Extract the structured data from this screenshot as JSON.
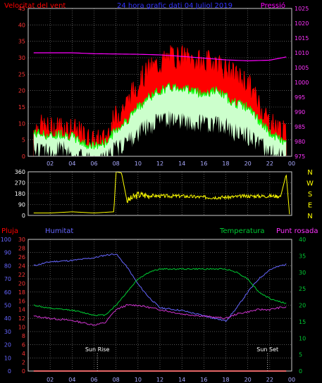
{
  "header": {
    "wind_speed_label": "Velocitat del vent",
    "title": "24 hora grafic dati  04 Juliol 2019",
    "pressure_label": "Pressió"
  },
  "legend_bottom": {
    "rain": "Pluja",
    "humidity": "Humitat",
    "temperature": "Temperatura",
    "dew_point": "Punt rosada"
  },
  "direction_labels": [
    "N",
    "W",
    "S",
    "E",
    "N"
  ],
  "markers": {
    "sunrise": "Sun Rise",
    "sunset": "Sun Set"
  },
  "colors": {
    "gust": "#ff0000",
    "avg_speed": "#00ff00",
    "speed_fill": "#ccffcc",
    "pressure": "#ff00ff",
    "direction": "#ffff00",
    "humidity": "#6666ff",
    "temperature": "#00cc33",
    "dew_point": "#cc33cc",
    "rain": "#ff0000",
    "grid": "#888888"
  },
  "chart_data": [
    {
      "type": "line",
      "name": "wind_and_pressure",
      "title": "24 hora grafic dati  04 Juliol 2019",
      "ylabel_left": "Velocitat del vent",
      "ylabel_right": "Pressió",
      "x_ticks": [
        "02",
        "04",
        "06",
        "08",
        "10",
        "12",
        "14",
        "16",
        "18",
        "20",
        "22",
        "00"
      ],
      "ylim_left": [
        0,
        45
      ],
      "yticks_left": [
        0,
        5,
        10,
        15,
        20,
        25,
        30,
        35,
        40,
        45
      ],
      "ylim_right": [
        975,
        1025
      ],
      "yticks_right": [
        975,
        980,
        985,
        990,
        995,
        1000,
        1005,
        1010,
        1015,
        1020,
        1025
      ],
      "grid": true,
      "series": [
        {
          "name": "gust",
          "axis": "left",
          "x": [
            0.5,
            1,
            2,
            3,
            4,
            5,
            6,
            7,
            8,
            9,
            10,
            11,
            12,
            13,
            14,
            15,
            16,
            17,
            18,
            19,
            20,
            21,
            22,
            23,
            23.5
          ],
          "values": [
            8,
            9,
            8,
            9,
            8,
            6,
            4,
            5,
            12,
            16,
            22,
            26,
            28,
            30,
            30,
            29,
            28,
            29,
            26,
            24,
            22,
            16,
            10,
            8,
            6
          ]
        },
        {
          "name": "average",
          "axis": "left",
          "x": [
            0.5,
            1,
            2,
            3,
            4,
            5,
            6,
            7,
            8,
            9,
            10,
            11,
            12,
            13,
            14,
            15,
            16,
            17,
            18,
            19,
            20,
            21,
            22,
            23,
            23.5
          ],
          "values": [
            7,
            7,
            6,
            7,
            6,
            4,
            3,
            4,
            8,
            11,
            15,
            18,
            20,
            21,
            21,
            20,
            19,
            20,
            18,
            16,
            15,
            11,
            7,
            5,
            4
          ]
        },
        {
          "name": "minimum",
          "axis": "left",
          "x": [
            0.5,
            1,
            2,
            3,
            4,
            5,
            6,
            7,
            8,
            9,
            10,
            11,
            12,
            13,
            14,
            15,
            16,
            17,
            18,
            19,
            20,
            21,
            22,
            23,
            23.5
          ],
          "values": [
            5,
            5,
            4,
            5,
            4,
            2,
            1,
            2,
            5,
            7,
            10,
            12,
            14,
            14,
            14,
            13,
            13,
            13,
            12,
            10,
            9,
            7,
            4,
            3,
            2
          ]
        },
        {
          "name": "pressure",
          "axis": "right",
          "x": [
            0.5,
            2,
            4,
            6,
            8,
            10,
            12,
            14,
            16,
            18,
            20,
            22,
            23.5
          ],
          "values": [
            1010,
            1010,
            1010,
            1009.7,
            1009.6,
            1009.5,
            1009.3,
            1008.8,
            1008.2,
            1007.6,
            1007.3,
            1007.5,
            1008.6
          ]
        }
      ]
    },
    {
      "type": "line",
      "name": "wind_direction",
      "x_ticks": [
        "02",
        "04",
        "06",
        "08",
        "10",
        "12",
        "14",
        "16",
        "18",
        "20",
        "22",
        "00"
      ],
      "ylim": [
        0,
        360
      ],
      "yticks": [
        0,
        90,
        180,
        270,
        360
      ],
      "series": [
        {
          "name": "direction",
          "x": [
            0.5,
            2,
            4,
            6,
            7.8,
            8,
            8.5,
            9,
            10,
            12,
            14,
            16,
            18,
            20,
            22,
            23,
            23.5,
            23.8
          ],
          "values": [
            20,
            20,
            30,
            20,
            30,
            360,
            350,
            120,
            170,
            160,
            160,
            150,
            150,
            160,
            160,
            160,
            340,
            10
          ]
        }
      ]
    },
    {
      "type": "line",
      "name": "temperature_humidity",
      "ylabel_left": "Humitat",
      "ylabel_right": "Temperatura",
      "x_ticks": [
        "02",
        "04",
        "06",
        "08",
        "10",
        "12",
        "14",
        "16",
        "18",
        "20",
        "22",
        "00"
      ],
      "ylim_humidity": [
        0,
        100
      ],
      "yticks_humidity": [
        0,
        10,
        20,
        30,
        40,
        50,
        60,
        70,
        80,
        90,
        100
      ],
      "ylim_temp": [
        0,
        30
      ],
      "yticks_temp": [
        0,
        2,
        4,
        6,
        8,
        10,
        12,
        14,
        16,
        18,
        20,
        22,
        24,
        26,
        28,
        30
      ],
      "ylim_right": [
        0,
        40
      ],
      "yticks_right": [
        0,
        5,
        10,
        15,
        20,
        25,
        30,
        35,
        40
      ],
      "series": [
        {
          "name": "humidity",
          "axis": "humidity",
          "x": [
            0.5,
            2,
            4,
            6,
            7,
            8,
            9,
            10,
            11,
            12,
            14,
            16,
            18,
            19,
            20,
            21,
            22,
            23,
            23.5
          ],
          "values": [
            80,
            83,
            84,
            86,
            88,
            89,
            79,
            66,
            56,
            48,
            46,
            42,
            38,
            48,
            60,
            70,
            77,
            80,
            81
          ]
        },
        {
          "name": "temperature",
          "axis": "right",
          "x": [
            0.5,
            2,
            4,
            6,
            7,
            8,
            9,
            10,
            11,
            12,
            14,
            16,
            18,
            19,
            20,
            21,
            22,
            23,
            23.5
          ],
          "values": [
            20,
            19,
            18.5,
            17,
            17,
            20,
            24,
            28,
            30,
            31,
            31,
            31,
            31,
            30,
            28,
            24,
            22,
            21,
            20.5
          ]
        },
        {
          "name": "dew_point",
          "axis": "temp",
          "x": [
            0.5,
            2,
            4,
            6,
            7,
            8,
            9,
            10,
            11,
            12,
            14,
            16,
            18,
            19,
            20,
            21,
            22,
            23,
            23.5
          ],
          "values": [
            12.5,
            12,
            11.5,
            10.5,
            11,
            14,
            15,
            15,
            14.5,
            14,
            13,
            12.5,
            12,
            13,
            13.5,
            14,
            14,
            14.5,
            14.5
          ]
        },
        {
          "name": "rain",
          "axis": "right",
          "x": [
            0.5,
            23.5
          ],
          "values": [
            0,
            0
          ]
        }
      ],
      "annotations": [
        {
          "text": "Sun Rise",
          "x": 6.3
        },
        {
          "text": "Sun Set",
          "x": 21.8
        }
      ]
    }
  ]
}
